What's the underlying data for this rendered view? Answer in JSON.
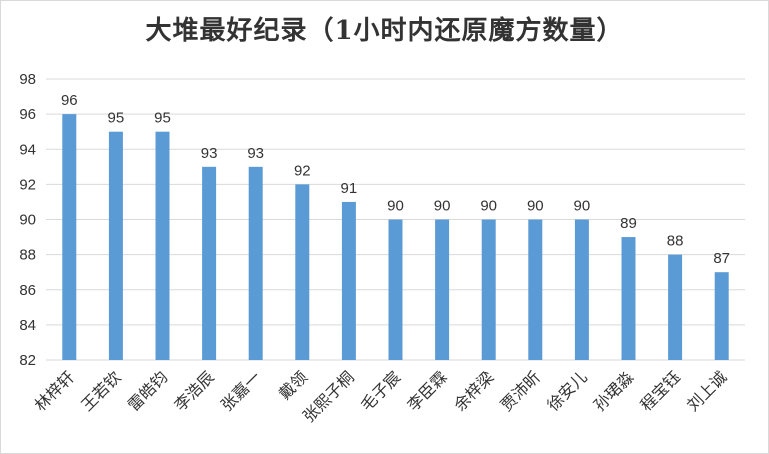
{
  "chart_data": {
    "type": "bar",
    "title": "大堆最好纪录（1小时内还原魔方数量）",
    "categories": [
      "林梓轩",
      "王若钦",
      "雷皓钧",
      "李浩辰",
      "张嘉一",
      "戴领",
      "张熙子桐",
      "毛子宸",
      "李臣霖",
      "余梓梁",
      "贾沛昕",
      "徐安儿",
      "孙珺淼",
      "程宝钰",
      "刘上诚"
    ],
    "values": [
      96,
      95,
      95,
      93,
      93,
      92,
      91,
      90,
      90,
      90,
      90,
      90,
      89,
      88,
      87
    ],
    "ylim": [
      82,
      98
    ],
    "yticks": [
      82,
      84,
      86,
      88,
      90,
      92,
      94,
      96,
      98
    ],
    "grid": true,
    "bar_color": "#5b9bd5",
    "grid_color": "#d9d9d9"
  }
}
